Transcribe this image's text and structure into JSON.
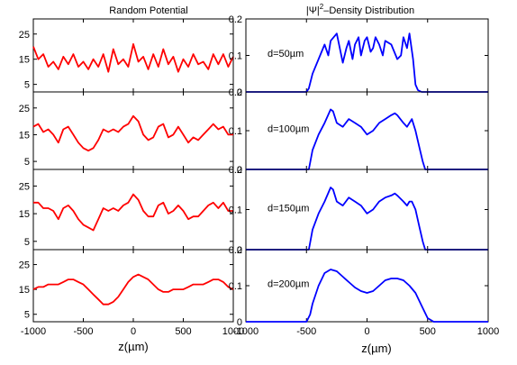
{
  "chart_data": [
    {
      "type": "line",
      "title": "Random Potential",
      "xlabel": "z(µm)",
      "ylabel": "",
      "xlim": [
        -1000,
        1000
      ],
      "ylim": [
        2,
        31
      ],
      "xticks": [
        -1000,
        -500,
        0,
        500,
        1000
      ],
      "yticks": [
        5,
        15,
        25
      ],
      "grid": false,
      "line_color": "#ff0000",
      "panels": [
        {
          "annotation": "",
          "x": [
            -1000,
            -950,
            -900,
            -850,
            -800,
            -750,
            -700,
            -650,
            -600,
            -550,
            -500,
            -450,
            -400,
            -350,
            -300,
            -250,
            -200,
            -150,
            -100,
            -50,
            0,
            50,
            100,
            150,
            200,
            250,
            300,
            350,
            400,
            450,
            500,
            550,
            600,
            650,
            700,
            750,
            800,
            850,
            900,
            950,
            1000
          ],
          "values": [
            20,
            15,
            17,
            12,
            14,
            11,
            16,
            13,
            17,
            12,
            14,
            11,
            15,
            12,
            17,
            10,
            19,
            13,
            15,
            12,
            21,
            14,
            16,
            11,
            17,
            12,
            19,
            13,
            16,
            10,
            15,
            12,
            17,
            13,
            14,
            11,
            17,
            13,
            17,
            12,
            16
          ]
        },
        {
          "annotation": "",
          "x": [
            -1000,
            -950,
            -900,
            -850,
            -800,
            -750,
            -700,
            -650,
            -600,
            -550,
            -500,
            -450,
            -400,
            -350,
            -300,
            -250,
            -200,
            -150,
            -100,
            -50,
            0,
            50,
            100,
            150,
            200,
            250,
            300,
            350,
            400,
            450,
            500,
            550,
            600,
            650,
            700,
            750,
            800,
            850,
            900,
            950,
            1000
          ],
          "values": [
            18,
            19,
            16,
            17,
            15,
            12,
            17,
            18,
            15,
            12,
            10,
            9,
            10,
            13,
            17,
            16,
            17,
            16,
            18,
            19,
            22,
            20,
            15,
            13,
            14,
            18,
            19,
            14,
            15,
            18,
            15,
            12,
            14,
            13,
            15,
            17,
            19,
            17,
            18,
            15,
            15
          ]
        },
        {
          "annotation": "",
          "x": [
            -1000,
            -950,
            -900,
            -850,
            -800,
            -750,
            -700,
            -650,
            -600,
            -550,
            -500,
            -450,
            -400,
            -350,
            -300,
            -250,
            -200,
            -150,
            -100,
            -50,
            0,
            50,
            100,
            150,
            200,
            250,
            300,
            350,
            400,
            450,
            500,
            550,
            600,
            650,
            700,
            750,
            800,
            850,
            900,
            950,
            1000
          ],
          "values": [
            19,
            19,
            17,
            17,
            16,
            13,
            17,
            18,
            16,
            13,
            11,
            10,
            9,
            13,
            17,
            16,
            17,
            16,
            18,
            19,
            22,
            20,
            16,
            14,
            14,
            18,
            19,
            15,
            16,
            18,
            16,
            13,
            14,
            14,
            16,
            18,
            19,
            17,
            19,
            16,
            16
          ]
        },
        {
          "annotation": "",
          "x": [
            -1000,
            -950,
            -900,
            -850,
            -800,
            -750,
            -700,
            -650,
            -600,
            -550,
            -500,
            -450,
            -400,
            -350,
            -300,
            -250,
            -200,
            -150,
            -100,
            -50,
            0,
            50,
            100,
            150,
            200,
            250,
            300,
            350,
            400,
            450,
            500,
            550,
            600,
            650,
            700,
            750,
            800,
            850,
            900,
            950,
            1000
          ],
          "values": [
            15,
            16,
            16,
            17,
            17,
            17,
            18,
            19,
            19,
            18,
            17,
            15,
            13,
            11,
            9,
            9,
            10,
            12,
            15,
            18,
            20,
            21,
            20,
            19,
            17,
            15,
            14,
            14,
            15,
            15,
            15,
            16,
            17,
            17,
            17,
            18,
            19,
            19,
            18,
            16,
            15
          ]
        }
      ]
    },
    {
      "type": "line",
      "title": "|Ψ|²–Density Distribution",
      "title_main": "|Ψ|",
      "title_sup": "2",
      "title_rest": "–Density Distribution",
      "xlabel": "z(µm)",
      "ylabel": "",
      "xlim": [
        -1000,
        1000
      ],
      "ylim": [
        0,
        0.2
      ],
      "xticks": [
        -1000,
        -500,
        0,
        500,
        1000
      ],
      "yticks": [
        0,
        0.1,
        0.2
      ],
      "grid": false,
      "line_color": "#0000ff",
      "panels": [
        {
          "annotation": "d=50µm",
          "x": [
            -1000,
            -500,
            -480,
            -450,
            -400,
            -350,
            -320,
            -300,
            -250,
            -200,
            -170,
            -150,
            -120,
            -100,
            -70,
            -50,
            -20,
            0,
            30,
            50,
            70,
            100,
            130,
            150,
            200,
            250,
            280,
            300,
            330,
            350,
            380,
            400,
            420,
            450,
            500,
            1000
          ],
          "values": [
            0,
            0,
            0.01,
            0.05,
            0.09,
            0.13,
            0.1,
            0.14,
            0.16,
            0.08,
            0.12,
            0.14,
            0.09,
            0.13,
            0.15,
            0.1,
            0.14,
            0.15,
            0.11,
            0.12,
            0.15,
            0.13,
            0.1,
            0.14,
            0.13,
            0.09,
            0.1,
            0.15,
            0.12,
            0.16,
            0.09,
            0.02,
            0.005,
            0,
            0,
            0
          ]
        },
        {
          "annotation": "d=100µm",
          "x": [
            -1000,
            -480,
            -450,
            -400,
            -350,
            -300,
            -280,
            -250,
            -200,
            -150,
            -100,
            -50,
            0,
            50,
            100,
            150,
            200,
            230,
            250,
            300,
            330,
            350,
            370,
            400,
            430,
            460,
            480,
            1000
          ],
          "values": [
            0,
            0,
            0.05,
            0.09,
            0.12,
            0.155,
            0.15,
            0.12,
            0.11,
            0.13,
            0.12,
            0.11,
            0.09,
            0.1,
            0.12,
            0.13,
            0.14,
            0.145,
            0.14,
            0.12,
            0.11,
            0.12,
            0.13,
            0.1,
            0.06,
            0.02,
            0,
            0
          ]
        },
        {
          "annotation": "d=150µm",
          "x": [
            -1000,
            -480,
            -450,
            -400,
            -350,
            -300,
            -280,
            -250,
            -200,
            -150,
            -100,
            -50,
            0,
            50,
            100,
            150,
            200,
            230,
            250,
            300,
            330,
            350,
            370,
            400,
            430,
            460,
            480,
            1000
          ],
          "values": [
            0,
            0,
            0.05,
            0.09,
            0.12,
            0.155,
            0.15,
            0.12,
            0.11,
            0.13,
            0.12,
            0.11,
            0.09,
            0.1,
            0.12,
            0.13,
            0.135,
            0.14,
            0.135,
            0.12,
            0.11,
            0.12,
            0.12,
            0.1,
            0.06,
            0.02,
            0,
            0
          ]
        },
        {
          "annotation": "d=200µm",
          "x": [
            -1000,
            -500,
            -470,
            -450,
            -400,
            -350,
            -300,
            -250,
            -200,
            -150,
            -100,
            -50,
            0,
            50,
            100,
            150,
            200,
            250,
            300,
            350,
            400,
            450,
            500,
            550,
            1000
          ],
          "values": [
            0,
            0,
            0.02,
            0.05,
            0.1,
            0.135,
            0.145,
            0.14,
            0.125,
            0.11,
            0.095,
            0.085,
            0.08,
            0.085,
            0.1,
            0.115,
            0.12,
            0.12,
            0.115,
            0.1,
            0.08,
            0.045,
            0.01,
            0,
            0
          ]
        }
      ]
    }
  ]
}
